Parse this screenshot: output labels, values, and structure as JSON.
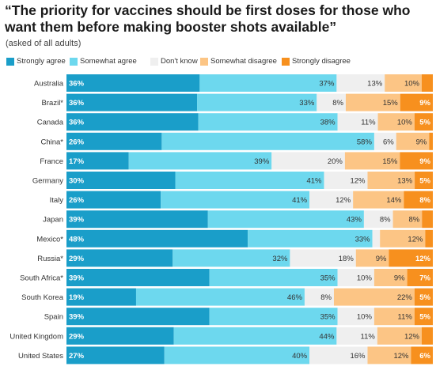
{
  "chart_data": {
    "type": "bar",
    "orientation": "horizontal",
    "stacked": true,
    "title": "“The priority for vaccines should be first doses for those who want them before making booster shots available”",
    "subtitle": "(asked of all adults)",
    "legend_position": "top-left",
    "xlim": [
      0,
      100
    ],
    "categories": [
      "Australia",
      "Brazil*",
      "Canada",
      "China*",
      "France",
      "Germany",
      "Italy",
      "Japan",
      "Mexico*",
      "Russia*",
      "South Africa*",
      "South Korea",
      "Spain",
      "United Kingdom",
      "United States"
    ],
    "series": [
      {
        "name": "Strongly agree",
        "color": "#1a9ec9",
        "label_color": "#ffffff",
        "label_bold": true,
        "values": [
          36,
          36,
          36,
          26,
          17,
          30,
          26,
          39,
          48,
          29,
          39,
          19,
          39,
          29,
          27
        ]
      },
      {
        "name": "Somewhat agree",
        "color": "#6dd8ee",
        "label_color": "#333333",
        "label_bold": false,
        "values": [
          37,
          33,
          38,
          58,
          39,
          41,
          41,
          43,
          33,
          32,
          35,
          46,
          35,
          44,
          40
        ]
      },
      {
        "name": "Don't know",
        "color": "#efefef",
        "label_color": "#333333",
        "label_bold": false,
        "values": [
          13,
          8,
          11,
          6,
          20,
          12,
          12,
          8,
          2,
          18,
          10,
          8,
          10,
          11,
          16
        ]
      },
      {
        "name": "Somewhat disagree",
        "color": "#fcc585",
        "label_color": "#333333",
        "label_bold": false,
        "values": [
          10,
          15,
          10,
          9,
          15,
          13,
          14,
          8,
          12,
          9,
          9,
          22,
          11,
          12,
          12
        ]
      },
      {
        "name": "Strongly disagree",
        "color": "#f7901e",
        "label_color": "#ffffff",
        "label_bold": true,
        "values": [
          3,
          9,
          5,
          1,
          9,
          5,
          8,
          3,
          2,
          12,
          7,
          5,
          5,
          3,
          6
        ]
      }
    ],
    "labels_shown": [
      [
        true,
        true,
        true,
        true,
        false
      ],
      [
        true,
        true,
        true,
        true,
        true
      ],
      [
        true,
        true,
        true,
        true,
        true
      ],
      [
        true,
        true,
        true,
        true,
        false
      ],
      [
        true,
        true,
        true,
        true,
        true
      ],
      [
        true,
        true,
        true,
        true,
        true
      ],
      [
        true,
        true,
        true,
        true,
        true
      ],
      [
        true,
        true,
        true,
        true,
        false
      ],
      [
        true,
        true,
        false,
        true,
        false
      ],
      [
        true,
        true,
        true,
        true,
        true
      ],
      [
        true,
        true,
        true,
        true,
        true
      ],
      [
        true,
        true,
        true,
        true,
        true
      ],
      [
        true,
        true,
        true,
        true,
        true
      ],
      [
        true,
        true,
        true,
        true,
        false
      ],
      [
        true,
        true,
        true,
        true,
        true
      ]
    ]
  }
}
